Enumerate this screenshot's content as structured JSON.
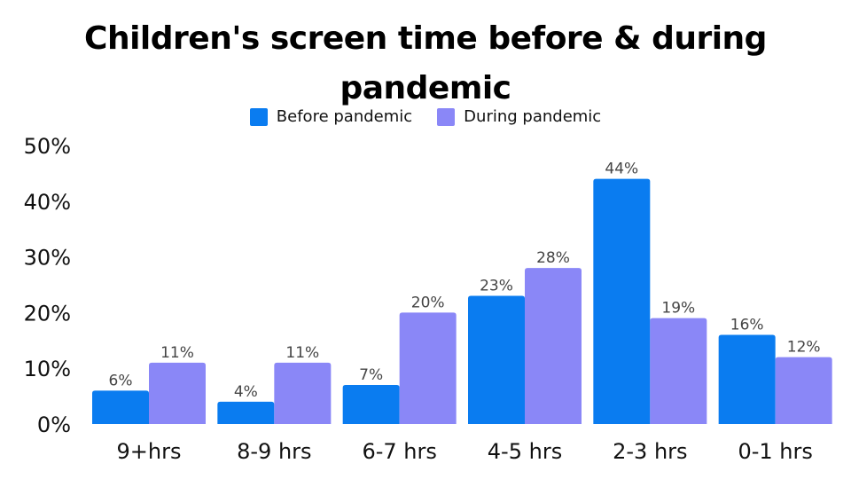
{
  "chart_data": {
    "type": "bar",
    "title_lines": [
      "Children's screen time before & during",
      "pandemic"
    ],
    "categories": [
      "9+hrs",
      "8-9 hrs",
      "6-7 hrs",
      "4-5 hrs",
      "2-3 hrs",
      "0-1 hrs"
    ],
    "series": [
      {
        "name": "Before pandemic",
        "color": "#0a7cf0",
        "values": [
          6,
          4,
          7,
          23,
          44,
          16
        ]
      },
      {
        "name": "During pandemic",
        "color": "#8a87f7",
        "values": [
          11,
          11,
          20,
          28,
          19,
          12
        ]
      }
    ],
    "ylim": [
      0,
      50
    ],
    "yticks": [
      0,
      10,
      20,
      30,
      40,
      50
    ],
    "tick_suffix": "%",
    "value_suffix": "%",
    "legend_position": "top-center",
    "grid": false
  }
}
